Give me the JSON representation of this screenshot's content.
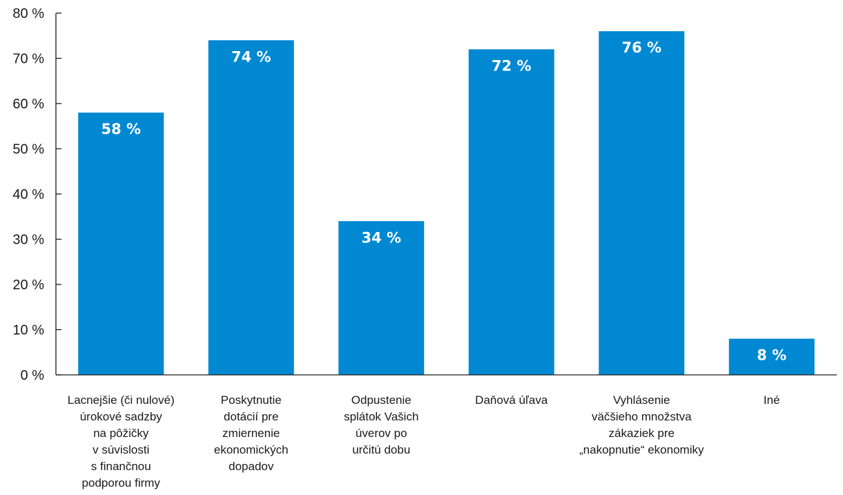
{
  "chart_data": {
    "type": "bar",
    "title": "",
    "xlabel": "",
    "ylabel": "",
    "ylim": [
      0,
      80
    ],
    "y_ticks": [
      0,
      10,
      20,
      30,
      40,
      50,
      60,
      70,
      80
    ],
    "y_tick_labels": [
      "0 %",
      "10 %",
      "20 %",
      "30 %",
      "40 %",
      "50 %",
      "60 %",
      "70 %",
      "80 %"
    ],
    "grid": false,
    "bar_color": "#0088d2",
    "categories": [
      "Lacnejšie (či nulové) úrokové sadzby na pôžičky v súvislosti s finančnou podporou firmy",
      "Poskytnutie dotácií pre zmiernenie ekonomických dopadov",
      "Odpustenie splátok Vašich úverov po určitú dobu",
      "Daňová úľava",
      "Vyhlásenie väčšieho množstva zákaziek pre „nakopnutie“ ekonomiky",
      "Iné"
    ],
    "category_lines": [
      [
        "Lacnejšie (či nulové)",
        "úrokové sadzby",
        "na pôžičky",
        "v súvislosti",
        "s finančnou",
        "podporou firmy"
      ],
      [
        "Poskytnutie",
        "dotácií pre",
        "zmiernenie",
        "ekonomických",
        "dopadov"
      ],
      [
        "Odpustenie",
        "splátok Vašich",
        "úverov po",
        "určitú dobu"
      ],
      [
        "Daňová úľava"
      ],
      [
        "Vyhlásenie",
        "väčšieho množstva",
        "zákaziek pre",
        "„nakopnutie“ ekonomiky"
      ],
      [
        "Iné"
      ]
    ],
    "values": [
      58,
      74,
      34,
      72,
      76,
      8
    ],
    "data_labels": [
      "58 %",
      "74 %",
      "34 %",
      "72 %",
      "76 %",
      "8 %"
    ]
  }
}
